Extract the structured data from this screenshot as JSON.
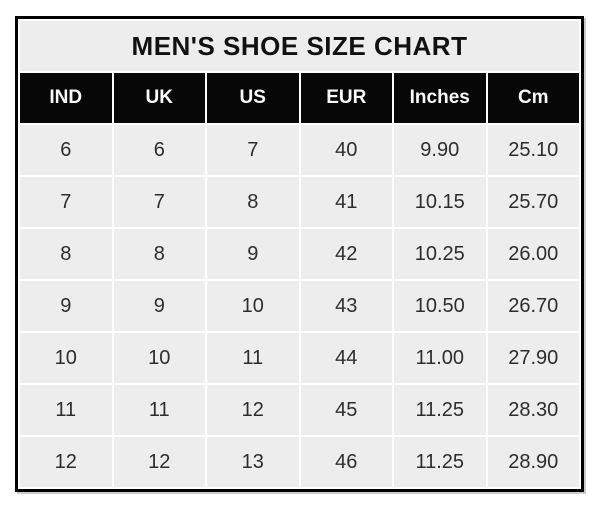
{
  "chart_data": {
    "type": "table",
    "title": "MEN'S SHOE SIZE CHART",
    "columns": [
      "IND",
      "UK",
      "US",
      "EUR",
      "Inches",
      "Cm"
    ],
    "rows": [
      [
        "6",
        "6",
        "7",
        "40",
        "9.90",
        "25.10"
      ],
      [
        "7",
        "7",
        "8",
        "41",
        "10.15",
        "25.70"
      ],
      [
        "8",
        "8",
        "9",
        "42",
        "10.25",
        "26.00"
      ],
      [
        "9",
        "9",
        "10",
        "43",
        "10.50",
        "26.70"
      ],
      [
        "10",
        "10",
        "11",
        "44",
        "11.00",
        "27.90"
      ],
      [
        "11",
        "11",
        "12",
        "45",
        "11.25",
        "28.30"
      ],
      [
        "12",
        "12",
        "13",
        "46",
        "11.25",
        "28.90"
      ]
    ],
    "layout": {
      "gridlines": "white 2px between all cells",
      "outer_border": "black 3px",
      "legend": "none"
    },
    "colors": {
      "page_background": "#ffffff",
      "title_background": "#ededed",
      "header_background": "#070707",
      "header_text": "#fbfbfb",
      "cell_background": "#ededed",
      "cell_text": "#2d2d2d",
      "border": "#000000",
      "gridline": "#ffffff"
    }
  }
}
